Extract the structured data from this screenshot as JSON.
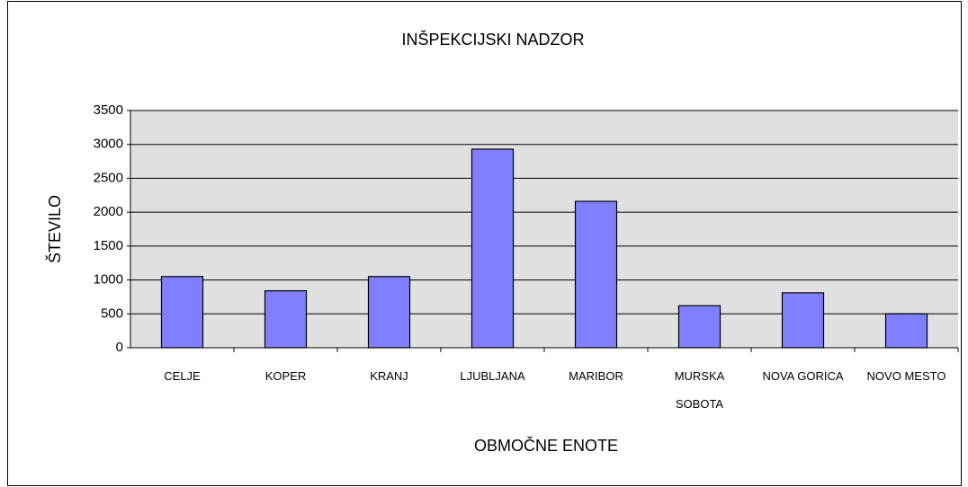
{
  "chart_data": {
    "type": "bar",
    "title": "INŠPEKCIJSKI NADZOR",
    "x_label": "OBMOČNE ENOTE",
    "y_label": "ŠTEVILO",
    "categories": [
      "CELJE",
      "KOPER",
      "KRANJ",
      "LJUBLJANA",
      "MARIBOR",
      "MURSKA SOBOTA",
      "NOVA GORICA",
      "NOVO MESTO"
    ],
    "values": [
      1050,
      840,
      1050,
      2930,
      2160,
      620,
      810,
      500
    ],
    "color": "#8080ff",
    "ylim": [
      0,
      3500
    ],
    "yticks": [
      0,
      500,
      1000,
      1500,
      2000,
      2500,
      3000,
      3500
    ],
    "grid": true
  }
}
